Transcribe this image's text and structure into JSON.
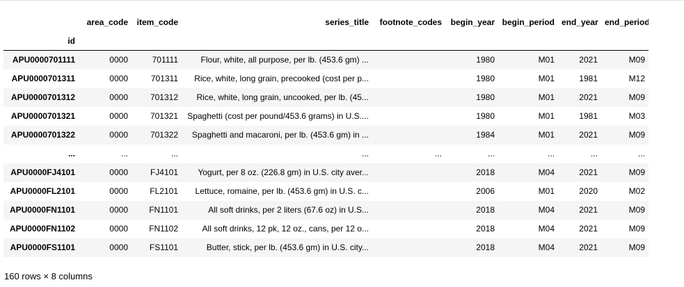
{
  "table": {
    "columns": [
      "area_code",
      "item_code",
      "series_title",
      "footnote_codes",
      "begin_year",
      "begin_period",
      "end_year",
      "end_period"
    ],
    "index_name": "id",
    "rows": [
      {
        "id": "APU0000701111",
        "cells": [
          "0000",
          "701111",
          "Flour, white, all purpose, per lb. (453.6 gm) ...",
          "",
          "1980",
          "M01",
          "2021",
          "M09"
        ]
      },
      {
        "id": "APU0000701311",
        "cells": [
          "0000",
          "701311",
          "Rice, white, long grain, precooked (cost per p...",
          "",
          "1980",
          "M01",
          "1981",
          "M12"
        ]
      },
      {
        "id": "APU0000701312",
        "cells": [
          "0000",
          "701312",
          "Rice, white, long grain, uncooked, per lb. (45...",
          "",
          "1980",
          "M01",
          "2021",
          "M09"
        ]
      },
      {
        "id": "APU0000701321",
        "cells": [
          "0000",
          "701321",
          "Spaghetti (cost per pound/453.6 grams) in U.S....",
          "",
          "1980",
          "M01",
          "1981",
          "M03"
        ]
      },
      {
        "id": "APU0000701322",
        "cells": [
          "0000",
          "701322",
          "Spaghetti and macaroni, per lb. (453.6 gm) in ...",
          "",
          "1984",
          "M01",
          "2021",
          "M09"
        ]
      },
      {
        "id": "...",
        "cells": [
          "...",
          "...",
          "...",
          "...",
          "...",
          "...",
          "...",
          "..."
        ]
      },
      {
        "id": "APU0000FJ4101",
        "cells": [
          "0000",
          "FJ4101",
          "Yogurt, per 8 oz. (226.8 gm) in U.S. city aver...",
          "",
          "2018",
          "M04",
          "2021",
          "M09"
        ]
      },
      {
        "id": "APU0000FL2101",
        "cells": [
          "0000",
          "FL2101",
          "Lettuce, romaine, per lb. (453.6 gm) in U.S. c...",
          "",
          "2006",
          "M01",
          "2020",
          "M02"
        ]
      },
      {
        "id": "APU0000FN1101",
        "cells": [
          "0000",
          "FN1101",
          "All soft drinks, per 2 liters (67.6 oz) in U.S...",
          "",
          "2018",
          "M04",
          "2021",
          "M09"
        ]
      },
      {
        "id": "APU0000FN1102",
        "cells": [
          "0000",
          "FN1102",
          "All soft drinks, 12 pk, 12 oz., cans, per 12 o...",
          "",
          "2018",
          "M04",
          "2021",
          "M09"
        ]
      },
      {
        "id": "APU0000FS1101",
        "cells": [
          "0000",
          "FS1101",
          "Butter, stick, per lb. (453.6 gm) in U.S. city...",
          "",
          "2018",
          "M04",
          "2021",
          "M09"
        ]
      }
    ]
  },
  "footer": {
    "shape_text": "160 rows × 8 columns"
  }
}
